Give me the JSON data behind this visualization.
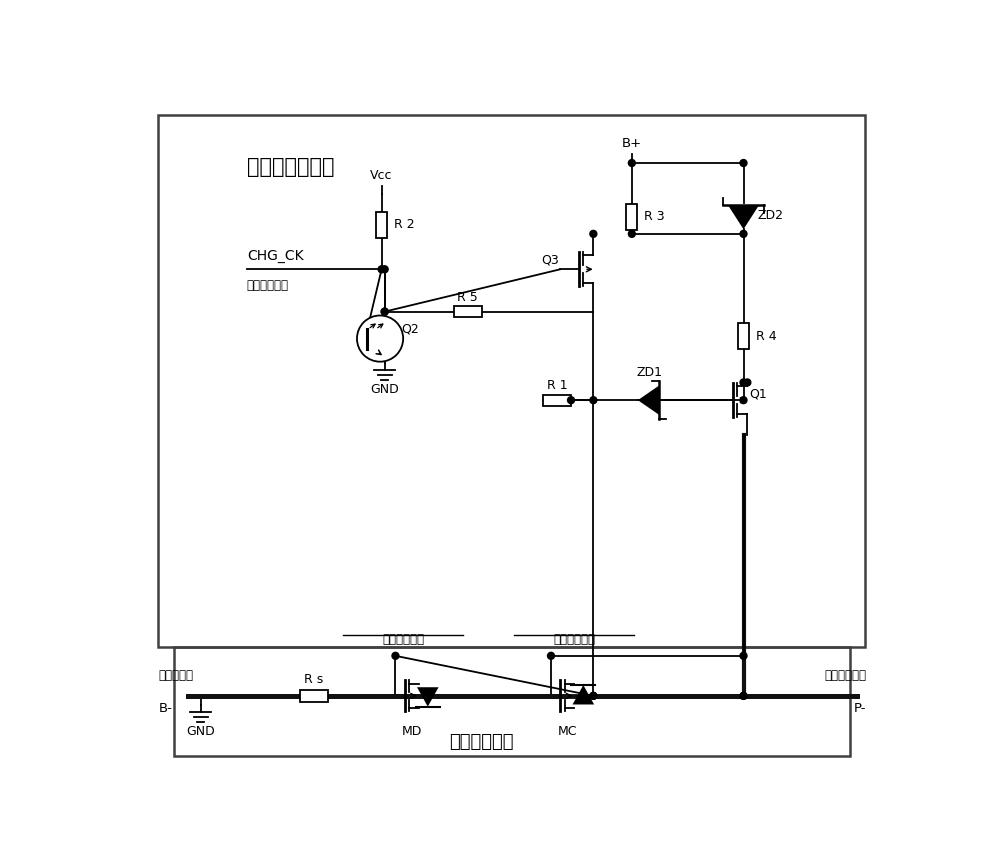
{
  "title_charger": "充电器检测电路",
  "title_bms": "电池管理系统",
  "label_chg_ck": "CHG_CK",
  "label_connect": "连接至控制器",
  "label_vcc": "Vcc",
  "label_gnd": "GND",
  "label_bplus": "B+",
  "label_bminus": "B-",
  "label_pminus": "P-",
  "label_battery_neg": "电池组负端",
  "label_charge_neg": "充电接口负端",
  "label_discharge": "放电控制电路",
  "label_charge_ctrl": "充电控制电路",
  "label_r1": "R 1",
  "label_r2": "R 2",
  "label_r3": "R 3",
  "label_r4": "R 4",
  "label_r5": "R 5",
  "label_rs": "R s",
  "label_q1": "Q1",
  "label_q2": "Q2",
  "label_q3": "Q3",
  "label_zd1": "ZD1",
  "label_zd2": "ZD2",
  "label_md": "MD",
  "label_mc": "MC",
  "bg_color": "#ffffff",
  "fig_width": 10.0,
  "fig_height": 8.58
}
